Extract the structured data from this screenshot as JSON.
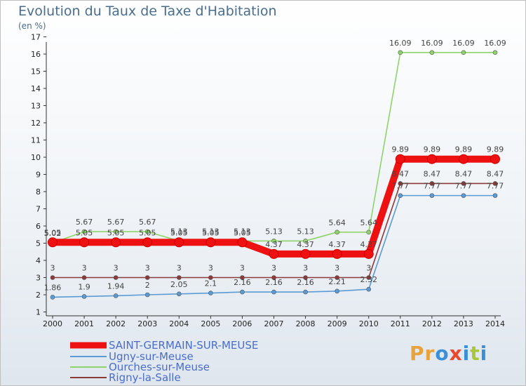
{
  "title": "Evolution du Taux de Taxe d'Habitation",
  "subtitle": "(en %)",
  "logo": {
    "letters": [
      "P",
      "r",
      "o",
      "x",
      "i",
      "t",
      "i"
    ],
    "colors": [
      "#e8a33c",
      "#e8a33c",
      "#3b8fd6",
      "#e84a2e",
      "#3b8fd6",
      "#a8c83c",
      "#3b8fd6"
    ]
  },
  "chart_data": {
    "type": "line",
    "title": "Evolution du Taux de Taxe d'Habitation",
    "ylabel": "(en %)",
    "x": [
      "2000",
      "2001",
      "2002",
      "2003",
      "2004",
      "2005",
      "2006",
      "2007",
      "2008",
      "2009",
      "2010",
      "2011",
      "2012",
      "2013",
      "2014"
    ],
    "ylim": [
      1,
      17
    ],
    "yticks": [
      1,
      2,
      3,
      4,
      5,
      6,
      7,
      8,
      9,
      10,
      11,
      12,
      13,
      14,
      15,
      16,
      17
    ],
    "grid": false,
    "legend_position": "bottom-left",
    "series": [
      {
        "name": "SAINT-GERMAIN-SUR-MEUSE",
        "color": "#ee1111",
        "thick": true,
        "values": [
          5.05,
          5.05,
          5.05,
          5.05,
          5.05,
          5.05,
          5.05,
          4.37,
          4.37,
          4.37,
          4.37,
          9.89,
          9.89,
          9.89,
          9.89
        ],
        "labels": [
          "5.05",
          "5.05",
          "5.05",
          "5.05",
          "5.05",
          "5.05",
          "5.05",
          "4.37",
          "4.37",
          "4.37",
          "4.37",
          "9.89",
          "9.89",
          "9.89",
          "9.89"
        ]
      },
      {
        "name": "Ugny-sur-Meuse",
        "color": "#5b9bd5",
        "thick": false,
        "values": [
          1.86,
          1.9,
          1.94,
          2,
          2.05,
          2.1,
          2.16,
          2.16,
          2.16,
          2.21,
          2.32,
          7.77,
          7.77,
          7.77,
          7.77
        ],
        "labels": [
          "1.86",
          "1.9",
          "1.94",
          "2",
          "2.05",
          "2.1",
          "2.16",
          "2.16",
          "2.16",
          "2.21",
          "2.32",
          "7.77",
          "7.77",
          "7.77",
          "7.77"
        ]
      },
      {
        "name": "Ourches-sur-Meuse",
        "color": "#8fd46a",
        "thick": false,
        "values": [
          5.02,
          5.67,
          5.67,
          5.67,
          5.13,
          5.13,
          5.13,
          5.13,
          5.13,
          5.64,
          5.64,
          16.09,
          16.09,
          16.09,
          16.09
        ],
        "labels": [
          "5.02",
          "5.67",
          "5.67",
          "5.67",
          "5.13",
          "5.13",
          "5.13",
          "5.13",
          "5.13",
          "5.64",
          "5.64",
          "16.09",
          "16.09",
          "16.09",
          "16.09"
        ]
      },
      {
        "name": "Rigny-la-Salle",
        "color": "#8b3a3a",
        "thick": false,
        "values": [
          3,
          3,
          3,
          3,
          3,
          3,
          3,
          3,
          3,
          3,
          3,
          8.47,
          8.47,
          8.47,
          8.47
        ],
        "labels": [
          "3",
          "3",
          "3",
          "3",
          "3",
          "3",
          "3",
          "3",
          "3",
          "3",
          "3",
          "8.47",
          "8.47",
          "8.47",
          "8.47"
        ]
      }
    ]
  }
}
